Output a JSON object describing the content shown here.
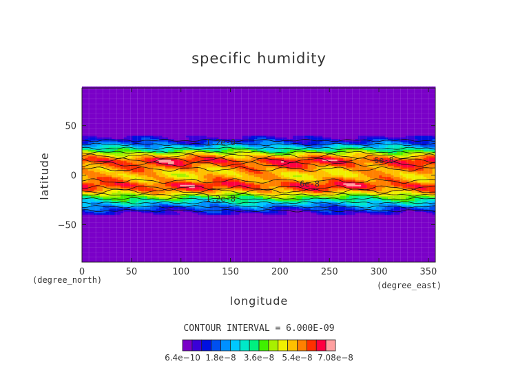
{
  "chart_data": {
    "type": "heatmap",
    "title": "specific humidity",
    "xlabel": "longitude",
    "ylabel": "latitude",
    "x_unit": "(degree_east)",
    "y_unit": "(degree_north)",
    "xlim": [
      0,
      357
    ],
    "ylim": [
      -88,
      88
    ],
    "x_ticks": [
      "0",
      "50",
      "100",
      "150",
      "200",
      "250",
      "300",
      "350"
    ],
    "x_tick_values": [
      0,
      50,
      100,
      150,
      200,
      250,
      300,
      350
    ],
    "y_ticks": [
      "50",
      "0",
      "−50"
    ],
    "y_tick_values": [
      50,
      0,
      -50
    ],
    "contour_interval_text": "CONTOUR INTERVAL = 6.000E-09",
    "contour_labels": [
      {
        "text": "6e-8",
        "lon": 295,
        "lat": 15
      },
      {
        "text": "6e-8",
        "lon": 220,
        "lat": -9
      },
      {
        "text": "1.2e-8",
        "lon": 125,
        "lat": 33
      },
      {
        "text": "1.2e-8",
        "lon": 125,
        "lat": -24
      }
    ],
    "profile": {
      "lat": [
        -88,
        -45,
        -40,
        -35,
        -30,
        -25,
        -20,
        -15,
        -10,
        -5,
        0,
        5,
        10,
        15,
        20,
        25,
        30,
        35,
        40,
        45,
        88
      ],
      "value": [
        6e-10,
        6e-10,
        5e-09,
        1.2e-08,
        2.2e-08,
        3.2e-08,
        4.3e-08,
        5.6e-08,
        6.2e-08,
        5.4e-08,
        5e-08,
        5.2e-08,
        5.8e-08,
        6.2e-08,
        5e-08,
        3.6e-08,
        2.2e-08,
        1.1e-08,
        4e-09,
        6e-10,
        6e-10
      ]
    },
    "colorbar": {
      "colors": [
        "#7a00c8",
        "#3a00d8",
        "#0010e0",
        "#0050f0",
        "#0090ff",
        "#00c8ff",
        "#00e8c8",
        "#00f080",
        "#40f000",
        "#a8f000",
        "#f0f000",
        "#ffc000",
        "#ff8000",
        "#ff3000",
        "#ff0040",
        "#ffa0a0"
      ],
      "labels": [
        "6.4e−10",
        "1.8e−8",
        "3.6e−8",
        "5.4e−8",
        "7.08e−8"
      ],
      "min": 6.4e-10,
      "max": 7.08e-08
    }
  }
}
